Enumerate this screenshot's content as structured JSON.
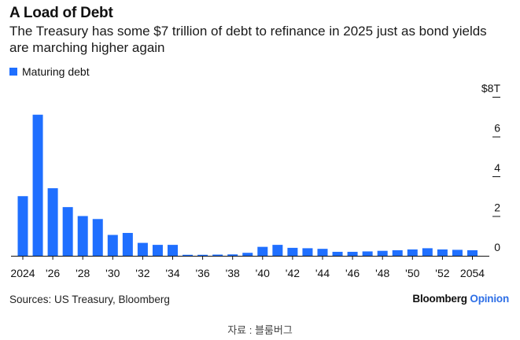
{
  "chart_data": {
    "type": "bar",
    "title": "A Load of Debt",
    "subtitle": "The Treasury has some $7 trillion of debt to refinance in 2025 just as bond yields are marching higher again",
    "legend": [
      "Maturing debt"
    ],
    "legend_position": "top-left",
    "series": [
      {
        "name": "Maturing debt",
        "color": "#1f6fff",
        "x": [
          2024,
          2025,
          2026,
          2027,
          2028,
          2029,
          2030,
          2031,
          2032,
          2033,
          2034,
          2035,
          2036,
          2037,
          2038,
          2039,
          2040,
          2041,
          2042,
          2043,
          2044,
          2045,
          2046,
          2047,
          2048,
          2049,
          2050,
          2051,
          2052,
          2053,
          2054
        ],
        "values": [
          3.0,
          7.1,
          3.4,
          2.45,
          2.0,
          1.85,
          1.05,
          1.15,
          0.65,
          0.55,
          0.55,
          0.05,
          0.05,
          0.06,
          0.07,
          0.15,
          0.45,
          0.55,
          0.4,
          0.38,
          0.35,
          0.2,
          0.2,
          0.22,
          0.25,
          0.28,
          0.32,
          0.38,
          0.32,
          0.3,
          0.28
        ]
      }
    ],
    "x_tick_labels": [
      "2024",
      "'26",
      "'28",
      "'30",
      "'32",
      "'34",
      "'36",
      "'38",
      "'40",
      "'42",
      "'44",
      "'46",
      "'48",
      "'50",
      "'52",
      "2054"
    ],
    "x_tick_years": [
      2024,
      2026,
      2028,
      2030,
      2032,
      2034,
      2036,
      2038,
      2040,
      2042,
      2044,
      2046,
      2048,
      2050,
      2052,
      2054
    ],
    "y_ticks": [
      0,
      2,
      4,
      6,
      8
    ],
    "y_tick_labels": [
      "0",
      "2",
      "4",
      "6",
      "$8T"
    ],
    "ylim": [
      0,
      8
    ],
    "grid": false,
    "source": "Sources: US Treasury, Bloomberg",
    "brand": "Bloomberg",
    "brand_accent": "Opinion",
    "caption": "자료 : 블룸버그"
  }
}
